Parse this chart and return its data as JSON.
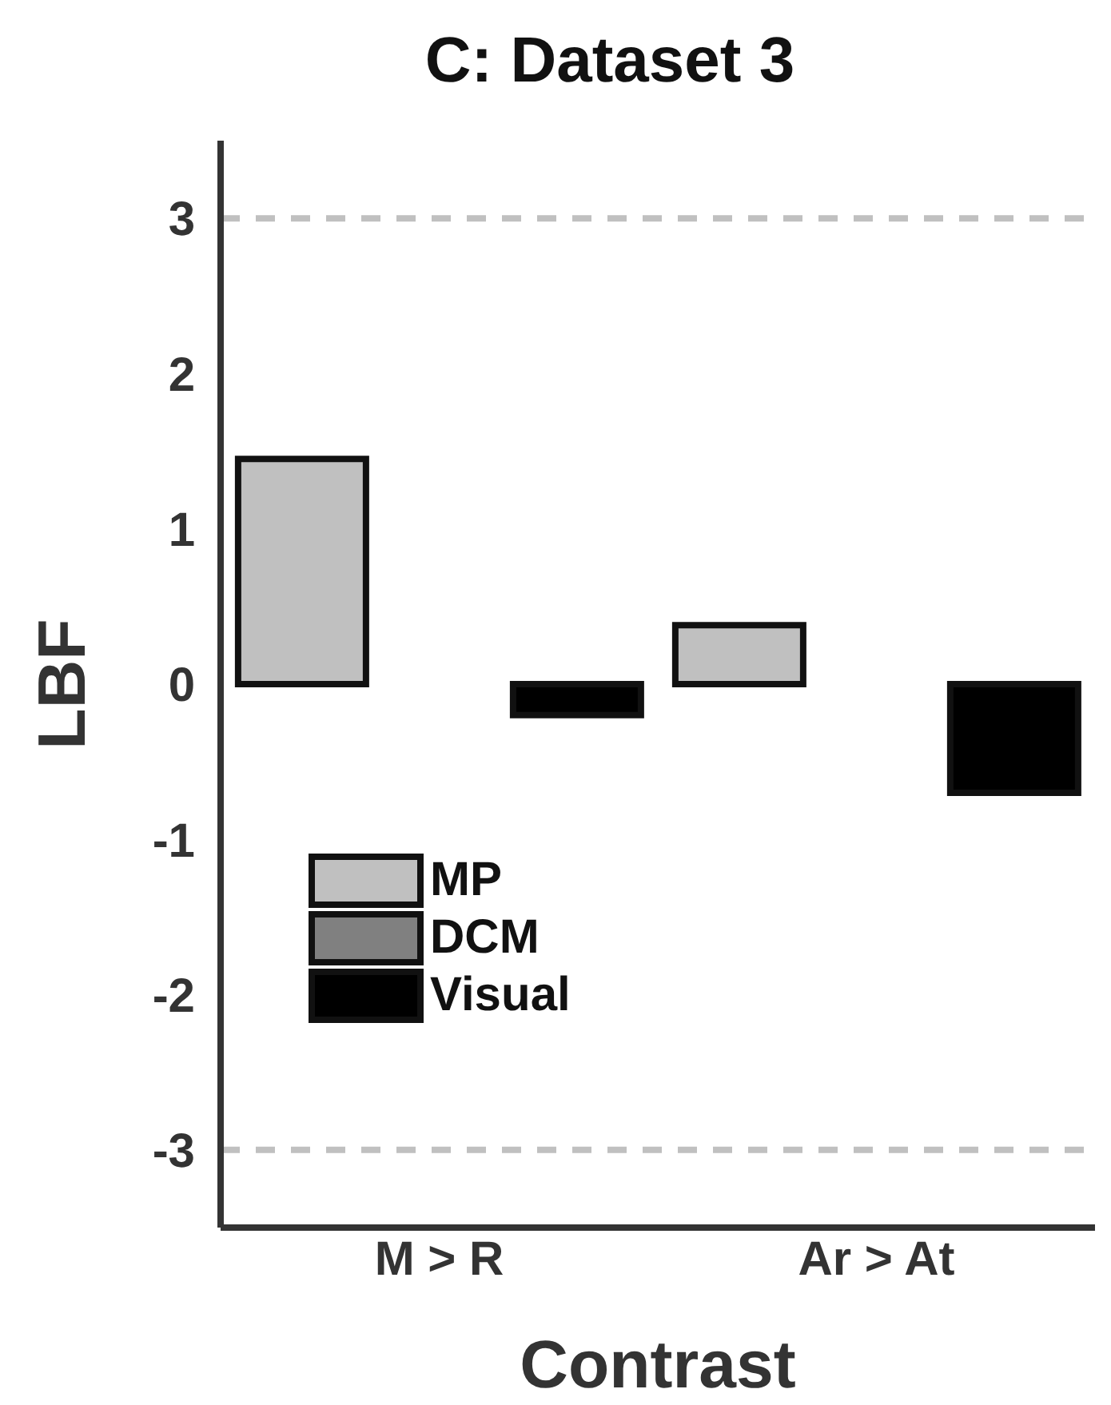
{
  "chart_data": {
    "type": "bar",
    "title": "C: Dataset 3",
    "xlabel": "Contrast",
    "ylabel": "LBF",
    "categories": [
      "M > R",
      "Ar > At"
    ],
    "series": [
      {
        "name": "MP",
        "color": "#c0c0c0",
        "values": [
          1.45,
          0.38
        ]
      },
      {
        "name": "DCM",
        "color": "#808080",
        "values": [
          0,
          0
        ]
      },
      {
        "name": "Visual",
        "color": "#000000",
        "values": [
          -0.2,
          -0.7
        ]
      }
    ],
    "ylim": [
      -3.5,
      3.5
    ],
    "yticks": [
      -3,
      -2,
      -1,
      0,
      1,
      2,
      3
    ],
    "ref_lines": [
      {
        "axis": "y",
        "value": 3,
        "color": "#c0c0c0",
        "line_style": "dashed"
      },
      {
        "axis": "y",
        "value": -3,
        "color": "#c0c0c0",
        "line_style": "dashed"
      }
    ],
    "legend": "bottom left",
    "grid": false
  }
}
